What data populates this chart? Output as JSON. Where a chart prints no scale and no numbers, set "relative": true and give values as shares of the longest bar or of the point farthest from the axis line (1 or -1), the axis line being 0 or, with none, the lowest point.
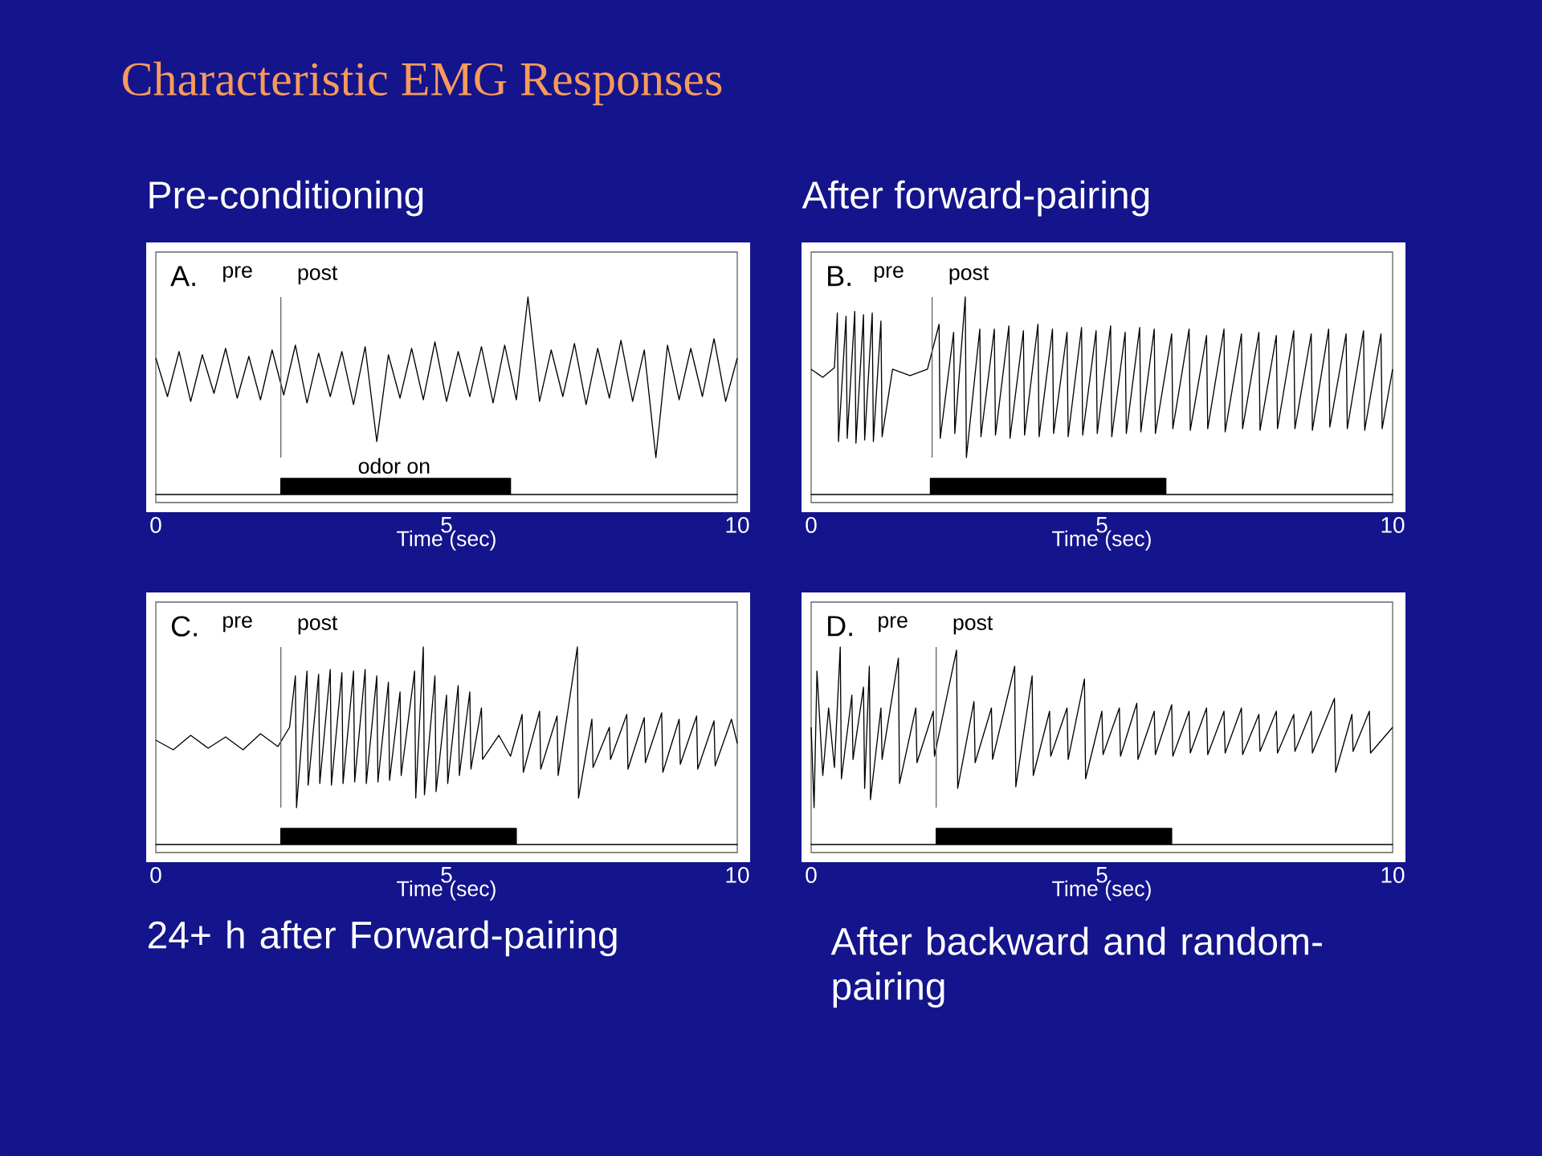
{
  "chart_data": [
    {
      "type": "line",
      "title": "Pre-conditioning",
      "relative": true,
      "color": "#000000",
      "xlabel": "Time (sec)",
      "xlim": [
        0,
        10
      ],
      "xticks": [
        0,
        5,
        10
      ],
      "x": [
        0,
        0.2,
        0.4,
        0.6,
        0.8,
        1,
        1.2,
        1.4,
        1.6,
        1.8,
        2,
        2.2,
        2.4,
        2.6,
        2.8,
        3,
        3.2,
        3.4,
        3.6,
        3.8,
        4,
        4.2,
        4.4,
        4.6,
        4.8,
        5,
        5.2,
        5.4,
        5.6,
        5.8,
        6,
        6.2,
        6.4,
        6.6,
        6.8,
        7,
        7.2,
        7.4,
        7.6,
        7.8,
        8,
        8.2,
        8.4,
        8.6,
        8.8,
        9,
        9.2,
        9.4,
        9.6,
        9.8,
        10
      ],
      "values": [
        0.62,
        0.38,
        0.66,
        0.35,
        0.64,
        0.4,
        0.68,
        0.37,
        0.63,
        0.36,
        0.67,
        0.39,
        0.7,
        0.34,
        0.65,
        0.38,
        0.66,
        0.33,
        0.69,
        0.1,
        0.64,
        0.37,
        0.68,
        0.36,
        0.72,
        0.35,
        0.66,
        0.38,
        0.69,
        0.34,
        0.7,
        0.36,
        1.0,
        0.35,
        0.67,
        0.38,
        0.71,
        0.33,
        0.68,
        0.37,
        0.73,
        0.35,
        0.67,
        0.0,
        0.7,
        0.36,
        0.68,
        0.38,
        0.74,
        0.35,
        0.62
      ],
      "ref_lines": [
        {
          "axis": "x",
          "value": 2.15
        }
      ],
      "annotations": [
        "A.",
        "pre",
        "post",
        "Characteristic EMG Responses"
      ]
    },
    {
      "type": "area",
      "relative": true,
      "color": "#000000",
      "xlim": [
        0,
        10
      ],
      "x": [
        0,
        2.15,
        2.15,
        6.1,
        6.1,
        10
      ],
      "values": [
        0,
        0,
        1,
        1,
        0,
        0
      ],
      "annotations": [
        {
          "text": "odor  on",
          "x": 4.1,
          "y": 1
        }
      ]
    },
    {
      "type": "line",
      "title": "After forward-pairing",
      "relative": true,
      "color": "#000000",
      "xlabel": "Time (sec)",
      "xlim": [
        0,
        10
      ],
      "xticks": [
        0,
        5,
        10
      ],
      "x": [
        0,
        0.2,
        0.4,
        0.45,
        0.47,
        0.6,
        0.62,
        0.75,
        0.77,
        0.9,
        0.92,
        1.05,
        1.07,
        1.2,
        1.22,
        1.4,
        1.7,
        2.0,
        2.2,
        2.22,
        2.45,
        2.47,
        2.65,
        2.67,
        2.9,
        2.92,
        3.15,
        3.17,
        3.4,
        3.42,
        3.65,
        3.67,
        3.9,
        3.92,
        4.15,
        4.17,
        4.4,
        4.42,
        4.65,
        4.67,
        4.9,
        4.92,
        5.15,
        5.17,
        5.4,
        5.42,
        5.65,
        5.67,
        5.9,
        5.92,
        6.2,
        6.22,
        6.5,
        6.52,
        6.8,
        6.82,
        7.1,
        7.12,
        7.4,
        7.42,
        7.7,
        7.72,
        8.0,
        8.02,
        8.3,
        8.32,
        8.6,
        8.62,
        8.9,
        8.92,
        9.2,
        9.22,
        9.5,
        9.52,
        9.8,
        9.82,
        10
      ],
      "values": [
        0.55,
        0.5,
        0.56,
        0.9,
        0.1,
        0.88,
        0.12,
        0.91,
        0.09,
        0.89,
        0.11,
        0.9,
        0.1,
        0.85,
        0.13,
        0.55,
        0.51,
        0.55,
        0.83,
        0.12,
        0.78,
        0.15,
        1.0,
        0.0,
        0.8,
        0.13,
        0.8,
        0.14,
        0.82,
        0.12,
        0.79,
        0.14,
        0.83,
        0.13,
        0.8,
        0.15,
        0.78,
        0.13,
        0.81,
        0.14,
        0.79,
        0.15,
        0.82,
        0.13,
        0.78,
        0.15,
        0.81,
        0.16,
        0.8,
        0.15,
        0.77,
        0.18,
        0.8,
        0.17,
        0.76,
        0.18,
        0.8,
        0.16,
        0.77,
        0.18,
        0.78,
        0.17,
        0.76,
        0.18,
        0.79,
        0.18,
        0.77,
        0.17,
        0.8,
        0.19,
        0.77,
        0.18,
        0.79,
        0.17,
        0.77,
        0.18,
        0.55
      ],
      "ref_lines": [
        {
          "axis": "x",
          "value": 2.08
        }
      ],
      "annotations": [
        "B.",
        "pre",
        "post"
      ]
    },
    {
      "type": "area",
      "relative": true,
      "color": "#000000",
      "xlim": [
        0,
        10
      ],
      "x": [
        0,
        2.05,
        2.05,
        6.1,
        6.1,
        10
      ],
      "values": [
        0,
        0,
        1,
        1,
        0,
        0
      ]
    },
    {
      "type": "line",
      "title": "24+ h after Forward-pairing",
      "relative": true,
      "color": "#000000",
      "xlabel": "Time (sec)",
      "xlim": [
        0,
        10
      ],
      "xticks": [
        0,
        5,
        10
      ],
      "x": [
        0,
        0.3,
        0.6,
        0.9,
        1.2,
        1.5,
        1.8,
        2.1,
        2.3,
        2.4,
        2.42,
        2.6,
        2.62,
        2.8,
        2.82,
        3.0,
        3.02,
        3.2,
        3.22,
        3.4,
        3.42,
        3.6,
        3.62,
        3.8,
        3.82,
        4.0,
        4.02,
        4.2,
        4.22,
        4.45,
        4.47,
        4.6,
        4.62,
        4.8,
        4.82,
        5.0,
        5.02,
        5.2,
        5.22,
        5.4,
        5.42,
        5.6,
        5.62,
        5.9,
        6.1,
        6.3,
        6.32,
        6.6,
        6.62,
        6.9,
        6.92,
        7.25,
        7.27,
        7.5,
        7.52,
        7.8,
        7.82,
        8.1,
        8.12,
        8.4,
        8.42,
        8.7,
        8.72,
        9.0,
        9.02,
        9.3,
        9.32,
        9.6,
        9.62,
        9.9,
        10
      ],
      "values": [
        0.42,
        0.36,
        0.45,
        0.37,
        0.44,
        0.36,
        0.46,
        0.38,
        0.5,
        0.82,
        0.0,
        0.85,
        0.14,
        0.83,
        0.15,
        0.86,
        0.14,
        0.84,
        0.15,
        0.85,
        0.16,
        0.86,
        0.15,
        0.82,
        0.16,
        0.78,
        0.17,
        0.72,
        0.2,
        0.85,
        0.06,
        1.0,
        0.08,
        0.82,
        0.1,
        0.7,
        0.15,
        0.76,
        0.2,
        0.72,
        0.24,
        0.62,
        0.3,
        0.45,
        0.32,
        0.58,
        0.22,
        0.6,
        0.24,
        0.57,
        0.2,
        1.0,
        0.06,
        0.55,
        0.25,
        0.5,
        0.3,
        0.58,
        0.24,
        0.56,
        0.28,
        0.59,
        0.22,
        0.55,
        0.27,
        0.57,
        0.24,
        0.54,
        0.26,
        0.55,
        0.4
      ],
      "ref_lines": [
        {
          "axis": "x",
          "value": 2.15
        }
      ],
      "annotations": [
        "C.",
        "pre",
        "post"
      ]
    },
    {
      "type": "area",
      "relative": true,
      "color": "#000000",
      "xlim": [
        0,
        10
      ],
      "x": [
        0,
        2.15,
        2.15,
        6.2,
        6.2,
        10
      ],
      "values": [
        0,
        0,
        1,
        1,
        0,
        0
      ]
    },
    {
      "type": "line",
      "title": "After backward and random-pairing",
      "relative": true,
      "color": "#000000",
      "xlabel": "Time (sec)",
      "xlim": [
        0,
        10
      ],
      "xticks": [
        0,
        5,
        10
      ],
      "x": [
        0,
        0.05,
        0.1,
        0.2,
        0.3,
        0.4,
        0.5,
        0.52,
        0.7,
        0.72,
        0.9,
        0.92,
        1.0,
        1.02,
        1.2,
        1.22,
        1.5,
        1.52,
        1.8,
        1.82,
        2.1,
        2.12,
        2.5,
        2.52,
        2.8,
        2.82,
        3.1,
        3.12,
        3.5,
        3.52,
        3.8,
        3.82,
        4.1,
        4.12,
        4.4,
        4.42,
        4.7,
        4.72,
        5.0,
        5.02,
        5.3,
        5.32,
        5.6,
        5.62,
        5.9,
        5.92,
        6.2,
        6.22,
        6.5,
        6.52,
        6.8,
        6.82,
        7.1,
        7.12,
        7.4,
        7.42,
        7.7,
        7.72,
        8.0,
        8.02,
        8.3,
        8.32,
        8.6,
        8.62,
        9.0,
        9.02,
        9.3,
        9.32,
        9.6,
        9.62,
        10
      ],
      "values": [
        0.5,
        0.0,
        0.85,
        0.2,
        0.62,
        0.25,
        1.0,
        0.18,
        0.7,
        0.3,
        0.75,
        0.12,
        0.88,
        0.05,
        0.62,
        0.3,
        0.93,
        0.15,
        0.62,
        0.28,
        0.6,
        0.32,
        0.98,
        0.12,
        0.66,
        0.28,
        0.62,
        0.3,
        0.88,
        0.13,
        0.82,
        0.2,
        0.6,
        0.32,
        0.62,
        0.3,
        0.8,
        0.18,
        0.6,
        0.33,
        0.62,
        0.32,
        0.65,
        0.3,
        0.6,
        0.33,
        0.64,
        0.32,
        0.6,
        0.34,
        0.62,
        0.33,
        0.6,
        0.34,
        0.62,
        0.33,
        0.58,
        0.35,
        0.6,
        0.34,
        0.58,
        0.35,
        0.6,
        0.34,
        0.68,
        0.22,
        0.58,
        0.35,
        0.6,
        0.34,
        0.5
      ],
      "ref_lines": [
        {
          "axis": "x",
          "value": 2.15
        }
      ],
      "annotations": [
        "D.",
        "pre",
        "post"
      ]
    },
    {
      "type": "area",
      "relative": true,
      "color": "#000000",
      "xlim": [
        0,
        10
      ],
      "x": [
        0,
        2.15,
        2.15,
        6.2,
        6.2,
        10
      ],
      "values": [
        0,
        0,
        1,
        1,
        0,
        0
      ]
    }
  ]
}
